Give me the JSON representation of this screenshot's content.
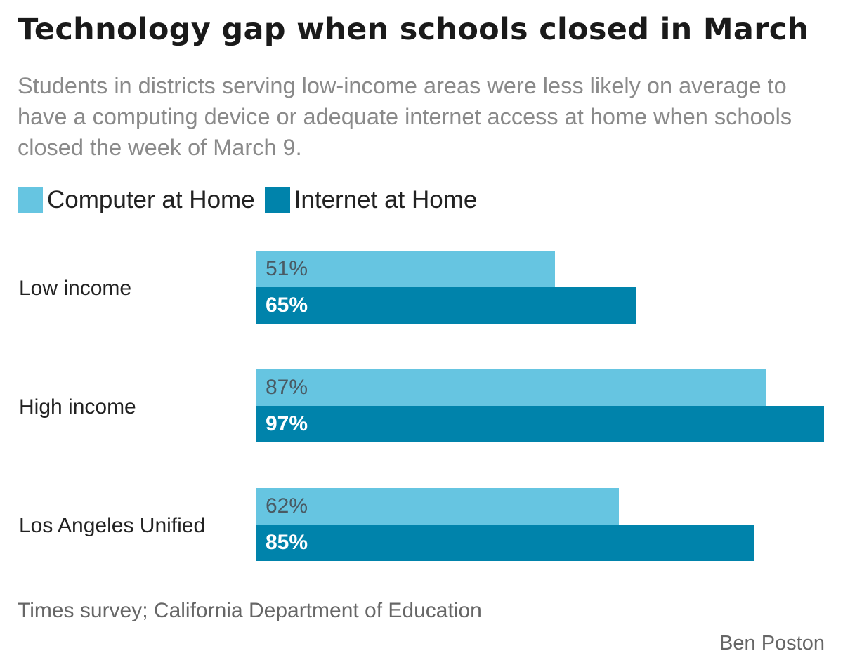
{
  "title": "Technology gap when schools closed in March",
  "subtitle": "Students in districts serving low-income areas were less likely on average to have a computing device or adequate internet access at home when schools closed the week of March 9.",
  "source": "Times survey; California Department of Education",
  "credit": "Ben Poston",
  "colors": {
    "computer": "#66c5e1",
    "internet": "#0083ab",
    "computer_label": "#4a5a63",
    "internet_label": "#ffffff"
  },
  "chart_data": {
    "type": "bar",
    "orientation": "horizontal",
    "title": "Technology gap when schools closed in March",
    "categories": [
      "Low income",
      "High income",
      "Los Angeles Unified"
    ],
    "series": [
      {
        "name": "Computer at Home",
        "values": [
          51,
          87,
          62
        ],
        "labels": [
          "51%",
          "87%",
          "62%"
        ]
      },
      {
        "name": "Internet at Home",
        "values": [
          65,
          97,
          85
        ],
        "labels": [
          "65%",
          "97%",
          "85%"
        ]
      }
    ],
    "xlim": [
      0,
      97
    ],
    "unit": "%",
    "grid": false,
    "legend": "top-left",
    "xlabel": "",
    "ylabel": ""
  }
}
